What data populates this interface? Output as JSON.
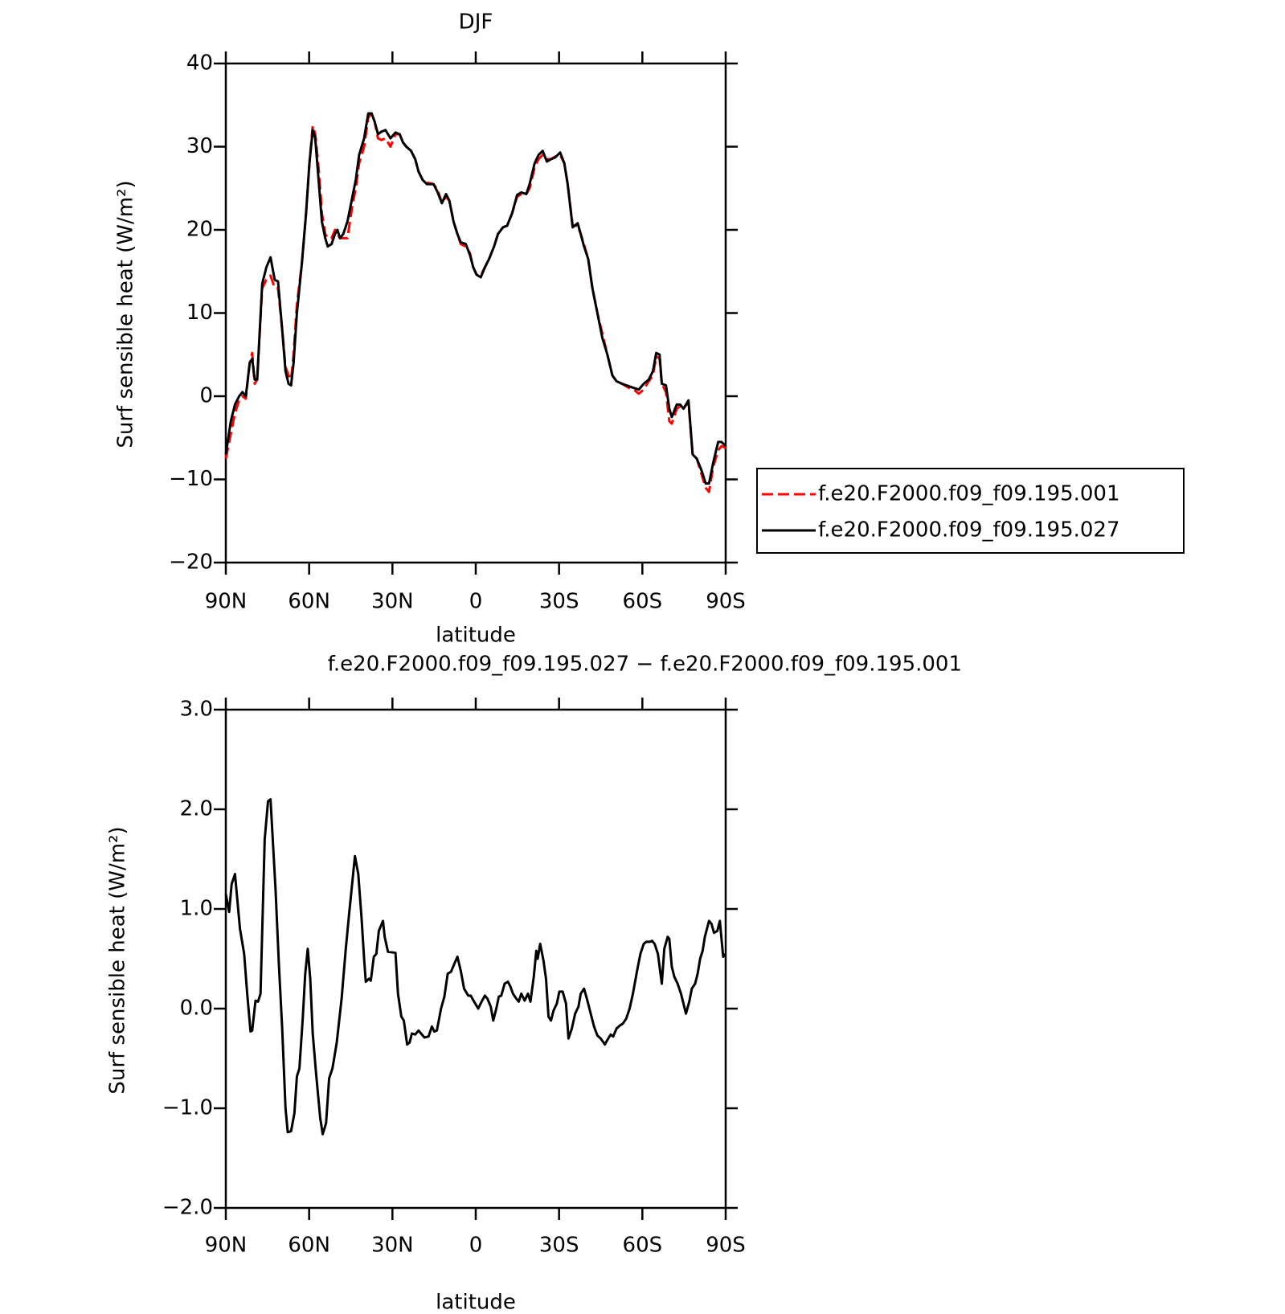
{
  "chart_data": [
    {
      "type": "line",
      "title": "DJF",
      "x_label": "latitude",
      "y_label": "Surf sensible heat (W/m²)",
      "xlim": [
        90,
        -90
      ],
      "ylim": [
        -20,
        40
      ],
      "xticks": [
        {
          "value": 90,
          "label": "90N"
        },
        {
          "value": 60,
          "label": "60N"
        },
        {
          "value": 30,
          "label": "30N"
        },
        0,
        {
          "value": -30,
          "label": "30S"
        },
        {
          "value": -60,
          "label": "60S"
        },
        {
          "value": -90,
          "label": "90S"
        }
      ],
      "yticks": [
        40,
        30,
        20,
        10,
        0,
        {
          "value": -10,
          "label": "−10"
        },
        {
          "value": -20,
          "label": "−20"
        }
      ],
      "legend": "right",
      "x": [
        90,
        88.2,
        86.7,
        85.2,
        84.0,
        82.8,
        81.4,
        80.5,
        79.6,
        78.7,
        76.9,
        75.4,
        73.9,
        72.4,
        71.2,
        69.7,
        68.5,
        67.4,
        66.5,
        65.6,
        64.4,
        62.6,
        61.1,
        59.9,
        58.7,
        57.8,
        56.6,
        55.4,
        54.2,
        53.3,
        51.9,
        50.7,
        49.8,
        48.9,
        47.7,
        46.2,
        44.4,
        43.2,
        42.0,
        40.2,
        38.7,
        37.5,
        36.4,
        35.2,
        34.0,
        32.5,
        30.7,
        28.9,
        27.4,
        26.2,
        25.0,
        23.3,
        21.8,
        20.6,
        19.1,
        17.6,
        15.2,
        13.7,
        12.2,
        10.7,
        9.5,
        8.0,
        6.6,
        5.4,
        3.6,
        2.1,
        0.9,
        -0.3,
        -1.8,
        -3.3,
        -4.8,
        -6.6,
        -8.0,
        -9.8,
        -11.3,
        -13.1,
        -14.9,
        -16.4,
        -18.2,
        -19.4,
        -21.2,
        -22.6,
        -24.1,
        -25.6,
        -27.1,
        -28.6,
        -30.4,
        -31.9,
        -33.1,
        -34.9,
        -36.7,
        -37.8,
        -39.0,
        -40.5,
        -42.0,
        -43.8,
        -45.6,
        -47.4,
        -49.2,
        -50.7,
        -52.7,
        -55.1,
        -56.9,
        -58.7,
        -60.5,
        -62.3,
        -63.8,
        -65.0,
        -66.2,
        -67.0,
        -68.5,
        -69.7,
        -70.6,
        -72.4,
        -73.6,
        -74.8,
        -76.6,
        -78.1,
        -79.6,
        -81.4,
        -82.8,
        -84.0,
        -85.5,
        -87.3,
        -88.5,
        -90
      ],
      "series": [
        {
          "name": "f.e20.F2000.f09_f09.195.001",
          "color": "#ff0000",
          "dashed": true,
          "values": [
            -7.5,
            -4.5,
            -2,
            -0.5,
            0,
            -0.3,
            4,
            5.2,
            1.5,
            2,
            13,
            14,
            14.5,
            13,
            13,
            8,
            3.5,
            2.5,
            2,
            5,
            11,
            16,
            22,
            28,
            32.5,
            31.5,
            27.5,
            22,
            19.5,
            19,
            19,
            20,
            19.5,
            19,
            19,
            19,
            23,
            25,
            28,
            30,
            33.5,
            34,
            33,
            31,
            30.8,
            31,
            30,
            31.5,
            31.5,
            30.5,
            30,
            29.5,
            28.5,
            27,
            26,
            25.7,
            25.5,
            24.8,
            23.2,
            24,
            23.5,
            21,
            19.5,
            18.3,
            18,
            17.2,
            15.5,
            14.6,
            14.5,
            15.5,
            16.5,
            18,
            19.5,
            20.3,
            20.5,
            22,
            24,
            24.3,
            24.3,
            25,
            27.5,
            28.5,
            29,
            28.5,
            28.5,
            28.8,
            29,
            28,
            25.5,
            20.5,
            20.5,
            19.5,
            18.2,
            16.5,
            13,
            10,
            7.5,
            5,
            2.5,
            1.8,
            1.5,
            1,
            0.8,
            0.3,
            0.8,
            1.8,
            2.5,
            4.8,
            4.5,
            1.5,
            0.5,
            -3,
            -3.3,
            -1.5,
            -1.2,
            -1.5,
            -0.7,
            -7,
            -7.5,
            -9.5,
            -11,
            -11.5,
            -8.5,
            -6.5,
            -6,
            -6.2
          ]
        },
        {
          "name": "f.e20.F2000.f09_f09.195.027",
          "color": "#000000",
          "dashed": false,
          "values": [
            -7,
            -3,
            -1,
            0,
            0.5,
            0,
            4,
            4.5,
            2,
            2,
            13.5,
            15.5,
            16.7,
            14,
            13.8,
            8,
            3,
            1.5,
            1.3,
            4,
            10,
            16,
            22,
            28,
            32,
            31,
            26,
            21,
            19,
            18,
            18.3,
            19.5,
            20,
            19,
            19.5,
            21,
            24,
            26,
            29,
            31,
            34,
            34,
            33,
            31.5,
            31.8,
            32,
            31,
            31.7,
            31.5,
            30.5,
            30,
            29.5,
            28.5,
            27,
            26,
            25.5,
            25.5,
            24.5,
            23.2,
            24.3,
            23.5,
            21,
            19.5,
            18.5,
            18.3,
            17,
            15.5,
            14.6,
            14.3,
            15.5,
            16.5,
            18,
            19.5,
            20.3,
            20.5,
            22,
            24.2,
            24.5,
            24.3,
            25.5,
            28,
            29,
            29.5,
            28.2,
            28.5,
            28.7,
            29.3,
            28,
            25.5,
            20.3,
            20.8,
            19.5,
            18,
            16.5,
            13,
            10,
            7,
            5,
            2.5,
            1.8,
            1.5,
            1.2,
            1,
            0.8,
            1.5,
            2,
            3,
            5.2,
            5,
            1.5,
            1.3,
            -1.5,
            -2.5,
            -1,
            -1,
            -1.5,
            -0.5,
            -7,
            -7.5,
            -9,
            -10.5,
            -10.5,
            -8,
            -5.5,
            -5.5,
            -6
          ]
        }
      ]
    },
    {
      "type": "line",
      "title": "f.e20.F2000.f09_f09.195.027 − f.e20.F2000.f09_f09.195.001",
      "x_label": "latitude",
      "y_label": "Surf sensible heat (W/m²)",
      "xlim": [
        90,
        -90
      ],
      "ylim": [
        -2,
        3
      ],
      "xticks": [
        {
          "value": 90,
          "label": "90N"
        },
        {
          "value": 60,
          "label": "60N"
        },
        {
          "value": 30,
          "label": "30N"
        },
        0,
        {
          "value": -30,
          "label": "30S"
        },
        {
          "value": -60,
          "label": "60S"
        },
        {
          "value": -90,
          "label": "90S"
        }
      ],
      "yticks": [
        {
          "value": 3,
          "label": "3.0"
        },
        {
          "value": 2,
          "label": "2.0"
        },
        {
          "value": 1,
          "label": "1.0"
        },
        {
          "value": 0,
          "label": "0.0"
        },
        {
          "value": -1,
          "label": "−1.0"
        },
        {
          "value": -2,
          "label": "−2.0"
        }
      ],
      "x": [
        90,
        88.8,
        87.9,
        86.7,
        84.9,
        83.4,
        82.3,
        81.1,
        80.5,
        79.3,
        78.4,
        77.5,
        76.0,
        74.8,
        73.9,
        72.1,
        70.9,
        69.7,
        68.5,
        67.7,
        66.5,
        65.3,
        64.4,
        63.5,
        62.3,
        61.4,
        60.5,
        59.6,
        58.7,
        57.5,
        56.0,
        55.1,
        53.9,
        52.8,
        51.6,
        50.1,
        48.3,
        46.8,
        45.6,
        43.5,
        42.3,
        41.1,
        40.2,
        39.6,
        38.4,
        37.8,
        36.7,
        35.8,
        34.9,
        33.4,
        32.8,
        31.6,
        28.9,
        28.0,
        26.8,
        25.9,
        24.7,
        23.8,
        23.0,
        21.8,
        20.6,
        19.7,
        18.5,
        17.0,
        15.8,
        14.9,
        14.0,
        12.5,
        11.3,
        10.1,
        8.9,
        7.7,
        6.6,
        5.4,
        4.2,
        2.7,
        1.8,
        0.6,
        -0.9,
        -2.1,
        -3.3,
        -4.2,
        -5.4,
        -6.3,
        -7.4,
        -8.3,
        -9.2,
        -10.4,
        -11.6,
        -12.5,
        -13.4,
        -14.6,
        -15.5,
        -16.4,
        -17.6,
        -18.8,
        -19.7,
        -20.9,
        -21.8,
        -22.3,
        -23.2,
        -24.4,
        -25.3,
        -26.2,
        -27.1,
        -28.0,
        -29.2,
        -30.1,
        -31.3,
        -32.5,
        -33.4,
        -34.6,
        -35.8,
        -37.0,
        -37.8,
        -39.0,
        -40.2,
        -41.4,
        -42.6,
        -43.8,
        -45.0,
        -46.5,
        -47.7,
        -48.6,
        -49.5,
        -50.7,
        -51.9,
        -53.0,
        -54.2,
        -55.4,
        -56.6,
        -58.1,
        -59.3,
        -60.5,
        -61.4,
        -62.6,
        -63.5,
        -64.4,
        -65.6,
        -67.0,
        -67.9,
        -69.1,
        -69.7,
        -70.6,
        -71.5,
        -72.7,
        -73.9,
        -74.8,
        -75.7,
        -76.9,
        -77.8,
        -79.0,
        -79.9,
        -80.8,
        -81.7,
        -82.5,
        -84.0,
        -84.9,
        -85.8,
        -87.0,
        -87.9,
        -89.1,
        -90
      ],
      "series": [
        {
          "color": "#000000",
          "dashed": false,
          "values": [
            1.15,
            0.97,
            1.25,
            1.35,
            0.8,
            0.55,
            0.15,
            -0.23,
            -0.22,
            0.08,
            0.07,
            0.15,
            1.7,
            2.08,
            2.1,
            1.2,
            0.45,
            -0.2,
            -1.0,
            -1.24,
            -1.23,
            -1.05,
            -0.68,
            -0.6,
            -0.1,
            0.35,
            0.6,
            0.3,
            -0.25,
            -0.65,
            -1.1,
            -1.26,
            -1.15,
            -0.7,
            -0.6,
            -0.35,
            0.1,
            0.6,
            0.95,
            1.53,
            1.35,
            0.9,
            0.5,
            0.27,
            0.3,
            0.28,
            0.52,
            0.55,
            0.78,
            0.88,
            0.72,
            0.57,
            0.56,
            0.15,
            -0.08,
            -0.12,
            -0.36,
            -0.34,
            -0.25,
            -0.26,
            -0.22,
            -0.25,
            -0.29,
            -0.28,
            -0.18,
            -0.23,
            -0.22,
            0.0,
            0.12,
            0.35,
            0.37,
            0.45,
            0.52,
            0.38,
            0.2,
            0.13,
            0.13,
            0.07,
            0.0,
            0.07,
            0.13,
            0.1,
            0.02,
            -0.12,
            0.0,
            0.12,
            0.13,
            0.25,
            0.27,
            0.22,
            0.15,
            0.1,
            0.07,
            0.15,
            0.08,
            0.15,
            0.07,
            0.32,
            0.58,
            0.5,
            0.65,
            0.48,
            0.3,
            -0.08,
            -0.12,
            -0.02,
            0.05,
            0.17,
            0.17,
            0.05,
            -0.3,
            -0.2,
            -0.05,
            0.02,
            0.15,
            0.2,
            0.08,
            -0.05,
            -0.18,
            -0.27,
            -0.3,
            -0.36,
            -0.3,
            -0.26,
            -0.28,
            -0.2,
            -0.17,
            -0.15,
            -0.1,
            0.0,
            0.15,
            0.38,
            0.55,
            0.65,
            0.67,
            0.67,
            0.68,
            0.65,
            0.55,
            0.25,
            0.6,
            0.72,
            0.7,
            0.42,
            0.32,
            0.25,
            0.15,
            0.05,
            -0.05,
            0.07,
            0.2,
            0.25,
            0.35,
            0.5,
            0.58,
            0.72,
            0.88,
            0.85,
            0.76,
            0.78,
            0.88,
            0.52,
            0.55
          ]
        }
      ]
    }
  ]
}
